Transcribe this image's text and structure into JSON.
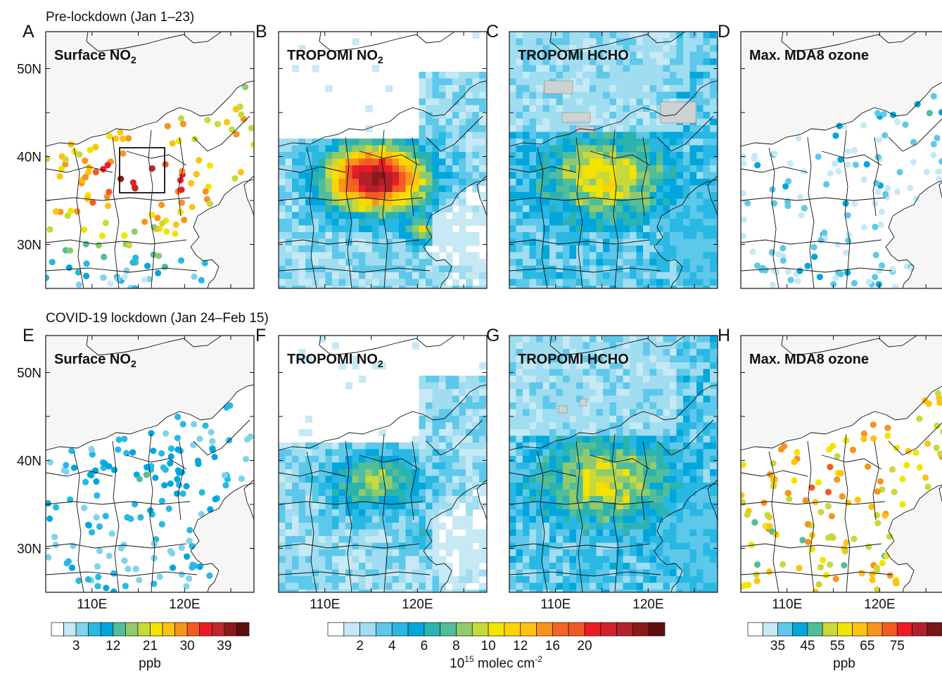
{
  "rows": [
    {
      "title": "Pre-lockdown (Jan 1–23)"
    },
    {
      "title": "COVID-19 lockdown (Jan 24–Feb 15)"
    }
  ],
  "panels": [
    {
      "letter": "A",
      "label_main": "Surface NO",
      "label_sub": "2",
      "kind": "surface_no2",
      "period": "pre",
      "colorbar": 0
    },
    {
      "letter": "B",
      "label_main": "TROPOMI NO",
      "label_sub": "2",
      "kind": "tropomi_no2",
      "period": "pre",
      "colorbar": 1
    },
    {
      "letter": "C",
      "label_main": "TROPOMI HCHO",
      "label_sub": "",
      "kind": "tropomi_hcho",
      "period": "pre",
      "colorbar": 1
    },
    {
      "letter": "D",
      "label_main": "Max. MDA8 ozone",
      "label_sub": "",
      "kind": "ozone",
      "period": "pre",
      "colorbar": 2
    },
    {
      "letter": "E",
      "label_main": "Surface NO",
      "label_sub": "2",
      "kind": "surface_no2",
      "period": "lock",
      "colorbar": 0
    },
    {
      "letter": "F",
      "label_main": "TROPOMI NO",
      "label_sub": "2",
      "kind": "tropomi_no2",
      "period": "lock",
      "colorbar": 1
    },
    {
      "letter": "G",
      "label_main": "TROPOMI HCHO",
      "label_sub": "",
      "kind": "tropomi_hcho",
      "period": "lock",
      "colorbar": 1
    },
    {
      "letter": "H",
      "label_main": "Max. MDA8 ozone",
      "label_sub": "",
      "kind": "ozone",
      "period": "lock",
      "colorbar": 2
    }
  ],
  "axes": {
    "lat_labels": [
      "50N",
      "40N",
      "30N"
    ],
    "lon_labels": [
      "110E",
      "120E"
    ]
  },
  "colorbars": [
    {
      "name": "surface-no2",
      "colors": [
        "#ffffff",
        "#c6e9f5",
        "#7fd3ec",
        "#28b8e3",
        "#00a6dc",
        "#52bd9a",
        "#8fcb6c",
        "#c9d83a",
        "#f3e400",
        "#ffc20e",
        "#f7941d",
        "#f15a24",
        "#ed1c24",
        "#c1272d",
        "#8b1a1a",
        "#5c0f0f"
      ],
      "tick_labels": [
        "3",
        "12",
        "21",
        "30",
        "39"
      ],
      "unit": "ppb"
    },
    {
      "name": "tropomi",
      "colors": [
        "#ffffff",
        "#c6e9f5",
        "#a0ddf0",
        "#5ec8ea",
        "#28b8e3",
        "#00a6dc",
        "#2bb3b0",
        "#52bd9a",
        "#8fcb6c",
        "#c9d83a",
        "#f3e400",
        "#ffd400",
        "#ffc20e",
        "#f7941d",
        "#f26522",
        "#f15a24",
        "#ed1c24",
        "#d4202a",
        "#b3202a",
        "#8b1a1a",
        "#5c0f0f"
      ],
      "tick_labels": [
        "2",
        "4",
        "6",
        "8",
        "10",
        "12",
        "16",
        "20"
      ],
      "unit_main": "10",
      "unit_exp": "15",
      "unit_rest": " molec cm",
      "unit_exp2": "-2"
    },
    {
      "name": "ozone",
      "colors": [
        "#ffffff",
        "#c6e9f5",
        "#5ec8ea",
        "#00a6dc",
        "#52bd9a",
        "#c9d83a",
        "#f3e400",
        "#ffc20e",
        "#f7941d",
        "#f15a24",
        "#ed1c24",
        "#b3202a",
        "#7a1717"
      ],
      "tick_labels": [
        "35",
        "45",
        "55",
        "65",
        "75"
      ],
      "unit": "ppb"
    }
  ],
  "colors": {
    "land": "#ffffff",
    "outside": "#f5f6f5",
    "water_gray": "#cfd2d3",
    "border": "#111111"
  }
}
